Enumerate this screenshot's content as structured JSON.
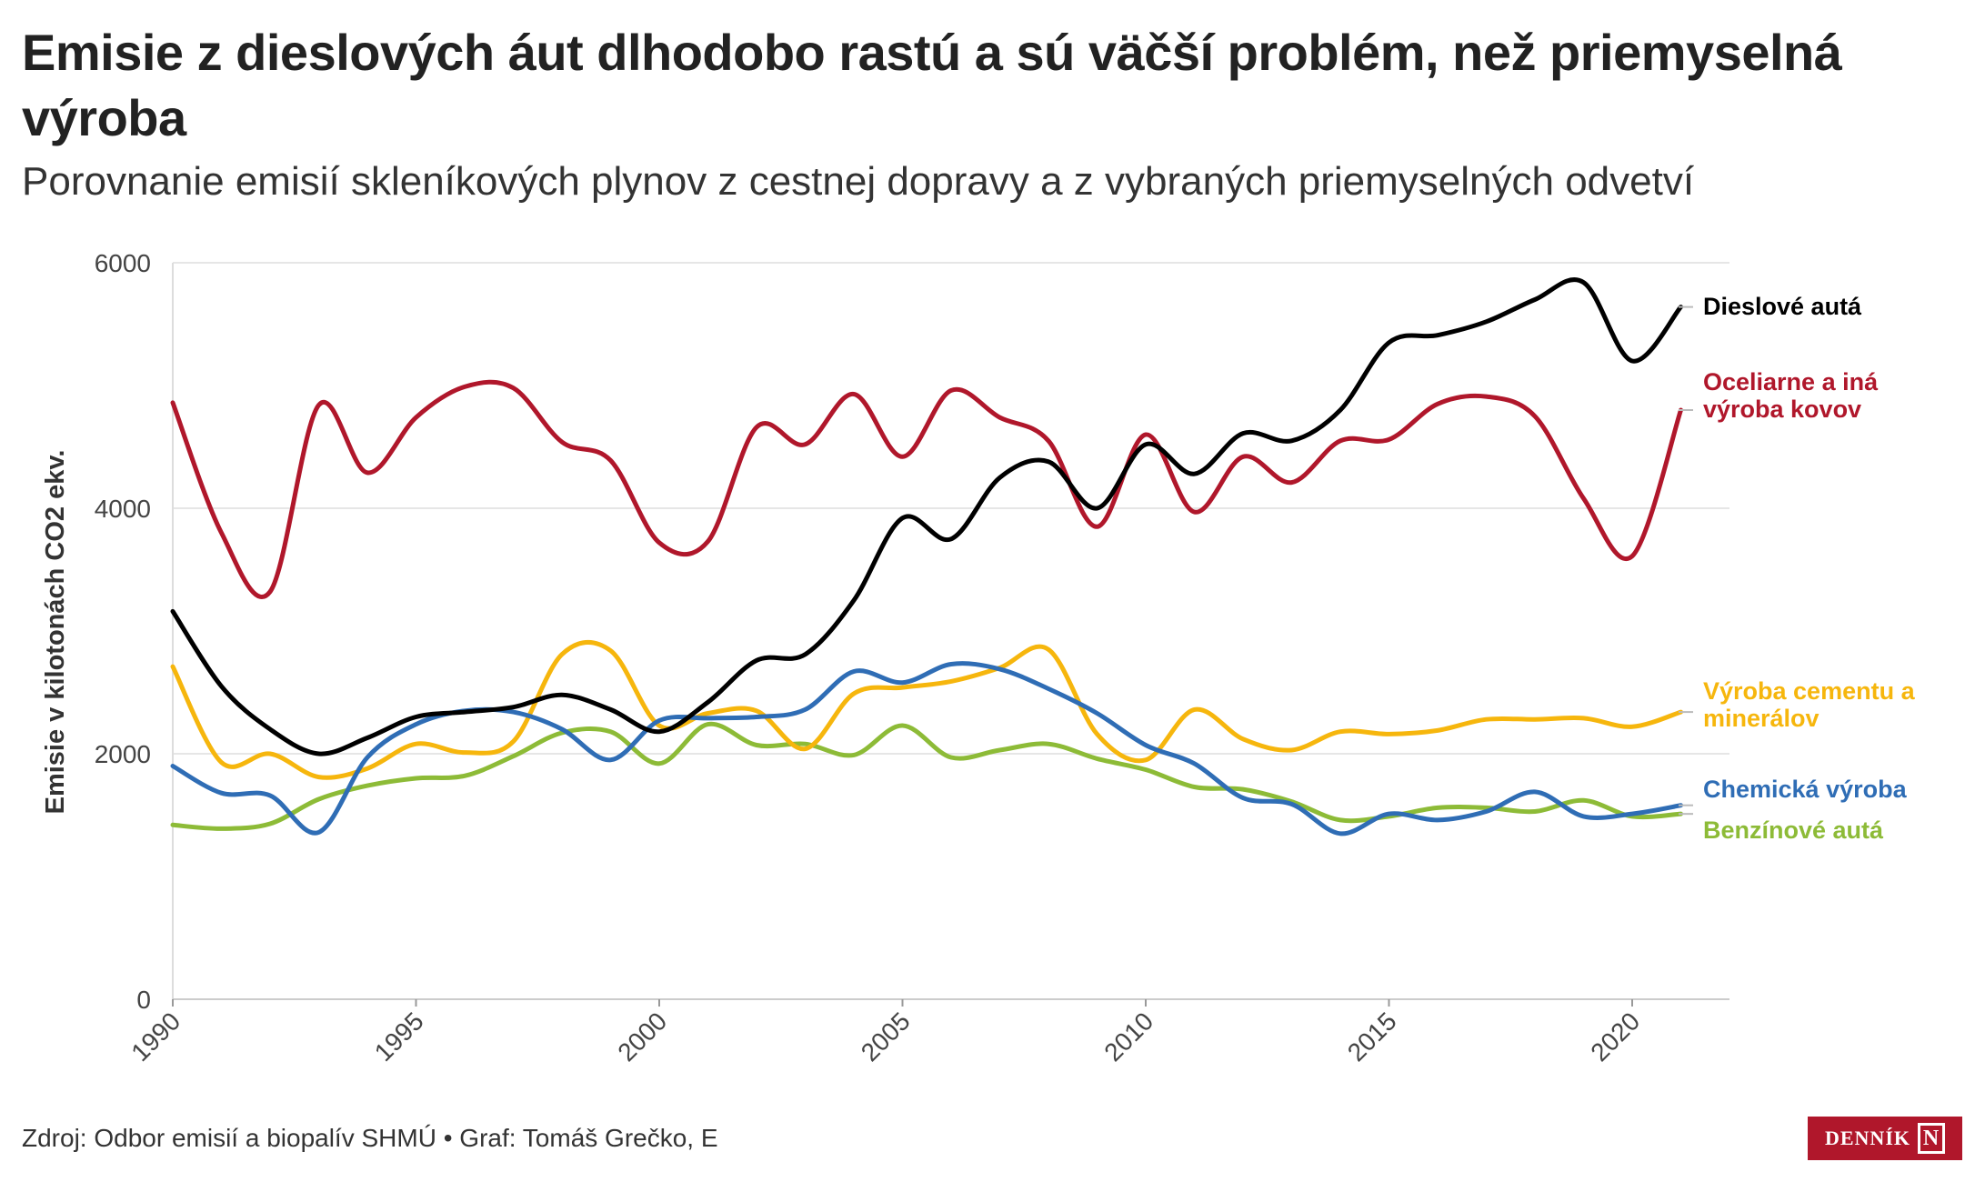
{
  "header": {
    "title": "Emisie z dieslových áut dlhodobo rastú a sú väčší problém, než priemyselná výroba",
    "subtitle": "Porovnanie emisií skleníkových plynov z cestnej dopravy a z vybraných priemyselných odvetví"
  },
  "footer": {
    "source": "Zdroj: Odbor emisií a biopalív SHMÚ • Graf: Tomáš Grečko, E",
    "logo_text": "DENNÍK",
    "logo_mark": "N"
  },
  "chart_data": {
    "type": "line",
    "title": "Emisie z dieslových áut dlhodobo rastú a sú väčší problém, než priemyselná výroba",
    "subtitle": "Porovnanie emisií skleníkových plynov z cestnej dopravy a z vybraných priemyselných odvetví",
    "xlabel": "",
    "ylabel": "Emisie v kilotonách CO2 ekv.",
    "xlim": [
      1990,
      2022
    ],
    "ylim": [
      0,
      6000
    ],
    "yticks": [
      0,
      2000,
      4000,
      6000
    ],
    "xticks": [
      1990,
      1995,
      2000,
      2005,
      2010,
      2015,
      2020
    ],
    "grid": "horizontal",
    "x": [
      1990,
      1991,
      1992,
      1993,
      1994,
      1995,
      1996,
      1997,
      1998,
      1999,
      2000,
      2001,
      2002,
      2003,
      2004,
      2005,
      2006,
      2007,
      2008,
      2009,
      2010,
      2011,
      2012,
      2013,
      2014,
      2015,
      2016,
      2017,
      2018,
      2019,
      2020,
      2021
    ],
    "series": [
      {
        "name": "Dieslové autá",
        "label": "Dieslové autá",
        "color": "#000000",
        "values": [
          3160,
          2550,
          2200,
          2000,
          2130,
          2300,
          2340,
          2380,
          2480,
          2360,
          2180,
          2420,
          2760,
          2810,
          3250,
          3920,
          3750,
          4250,
          4380,
          4000,
          4520,
          4280,
          4610,
          4550,
          4800,
          5350,
          5410,
          5520,
          5700,
          5840,
          5200,
          5640
        ]
      },
      {
        "name": "Oceliarne a iná výroba kovov",
        "label": "Oceliarne a iná výroba kovov",
        "color": "#b0172b",
        "values": [
          4860,
          3800,
          3320,
          4840,
          4290,
          4740,
          4990,
          4980,
          4540,
          4390,
          3720,
          3730,
          4660,
          4520,
          4930,
          4420,
          4960,
          4740,
          4550,
          3850,
          4600,
          3970,
          4420,
          4210,
          4550,
          4560,
          4850,
          4910,
          4750,
          4080,
          3610,
          4800
        ]
      },
      {
        "name": "Výroba cementu a minerálov",
        "label": "Výroba cementu a minerálov",
        "color": "#f6b60d",
        "values": [
          2710,
          1930,
          2000,
          1810,
          1880,
          2080,
          2010,
          2100,
          2810,
          2840,
          2230,
          2330,
          2350,
          2040,
          2490,
          2540,
          2590,
          2700,
          2850,
          2160,
          1950,
          2360,
          2120,
          2030,
          2180,
          2160,
          2190,
          2280,
          2280,
          2290,
          2220,
          2340
        ]
      },
      {
        "name": "Chemická výroba",
        "label": "Chemická výroba",
        "color": "#2f6db5",
        "values": [
          1900,
          1680,
          1660,
          1360,
          1970,
          2240,
          2350,
          2340,
          2200,
          1950,
          2270,
          2290,
          2300,
          2360,
          2670,
          2580,
          2730,
          2690,
          2530,
          2330,
          2070,
          1920,
          1640,
          1590,
          1350,
          1510,
          1460,
          1530,
          1690,
          1490,
          1510,
          1580
        ]
      },
      {
        "name": "Benzínové autá",
        "label": "Benzínové autá",
        "color": "#8dbb37",
        "values": [
          1420,
          1390,
          1430,
          1630,
          1740,
          1800,
          1820,
          1980,
          2170,
          2180,
          1920,
          2240,
          2070,
          2080,
          1990,
          2230,
          1970,
          2030,
          2080,
          1960,
          1870,
          1730,
          1710,
          1610,
          1460,
          1490,
          1560,
          1560,
          1530,
          1620,
          1490,
          1510
        ]
      }
    ]
  }
}
